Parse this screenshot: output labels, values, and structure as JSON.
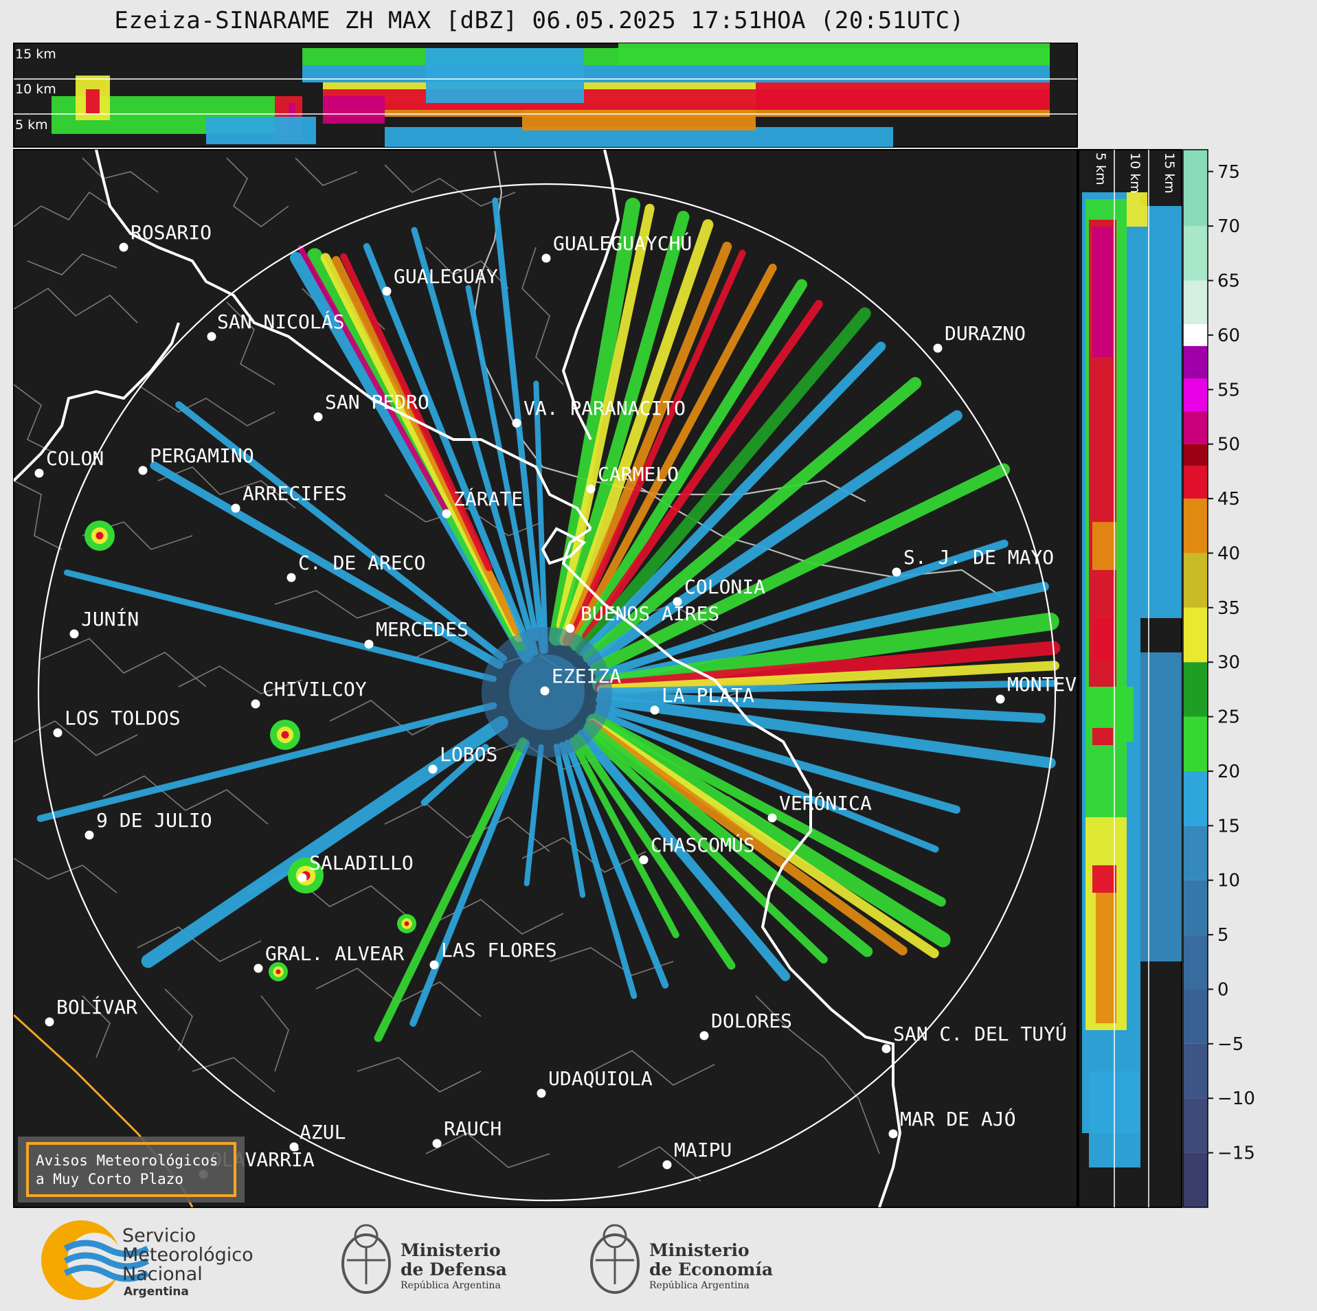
{
  "title": "Ezeiza-SINARAME ZH MAX [dBZ] 06.05.2025 17:51HOA (20:51UTC)",
  "height_labels_top": [
    "15 km",
    "10 km",
    "5 km"
  ],
  "height_labels_side": [
    "5 km",
    "10 km",
    "15 km"
  ],
  "colorbar": {
    "ticks": [
      "75",
      "70",
      "65",
      "60",
      "55",
      "50",
      "45",
      "40",
      "35",
      "30",
      "25",
      "20",
      "15",
      "10",
      "5",
      "0",
      "−5",
      "−10",
      "−15"
    ],
    "range": [
      -20,
      77
    ]
  },
  "cities": [
    {
      "name": "ROSARIO"
    },
    {
      "name": "GUALEGUAYCHÚ"
    },
    {
      "name": "GUALEGUAY"
    },
    {
      "name": "SAN NICOLÁS"
    },
    {
      "name": "DURAZNO"
    },
    {
      "name": "SAN PEDRO"
    },
    {
      "name": "VA. PARANACITO"
    },
    {
      "name": "COLON"
    },
    {
      "name": "PERGAMINO"
    },
    {
      "name": "CARMELO"
    },
    {
      "name": "ARRECIFES"
    },
    {
      "name": "ZÁRATE"
    },
    {
      "name": "S. J. DE MAYO"
    },
    {
      "name": "C. DE ARECO"
    },
    {
      "name": "COLONIA"
    },
    {
      "name": "JUNÍN"
    },
    {
      "name": "BUENOS AIRES"
    },
    {
      "name": "MERCEDES"
    },
    {
      "name": "EZEIZA"
    },
    {
      "name": "MONTEV"
    },
    {
      "name": "CHIVILCOY"
    },
    {
      "name": "LA PLATA"
    },
    {
      "name": "LOS TOLDOS"
    },
    {
      "name": "LOBOS"
    },
    {
      "name": "VERÓNICA"
    },
    {
      "name": "9 DE JULIO"
    },
    {
      "name": "CHASCOMÚS"
    },
    {
      "name": "SALADILLO"
    },
    {
      "name": "GRAL. ALVEAR"
    },
    {
      "name": "LAS FLORES"
    },
    {
      "name": "BOLÍVAR"
    },
    {
      "name": "DOLORES"
    },
    {
      "name": "SAN C. DEL TUYÚ"
    },
    {
      "name": "UDAQUIOLA"
    },
    {
      "name": "MAR DE AJÓ"
    },
    {
      "name": "RAUCH"
    },
    {
      "name": "AZUL"
    },
    {
      "name": "OLAVARRÍA"
    },
    {
      "name": "MAIPU"
    }
  ],
  "warning_box": {
    "line1": "Avisos Meteorológicos",
    "line2": "a Muy Corto Plazo"
  },
  "logos": {
    "smn": {
      "line1": "Servicio",
      "line2": "Meteorológico",
      "line3": "Nacional",
      "line4": "Argentina"
    },
    "defensa": {
      "line1": "Ministerio",
      "line2": "de Defensa",
      "line3": "República Argentina"
    },
    "economia": {
      "line1": "Ministerio",
      "line2": "de Economía",
      "line3": "República Argentina"
    }
  },
  "colors": {
    "background": "#1c1c1c",
    "range_ring": "#ffffff",
    "coast": "#ffffff",
    "borders": "#7a7a7a",
    "warning_border": "#f5a623",
    "smn_blue": "#2f8fd0",
    "smn_orange": "#f5a800"
  }
}
